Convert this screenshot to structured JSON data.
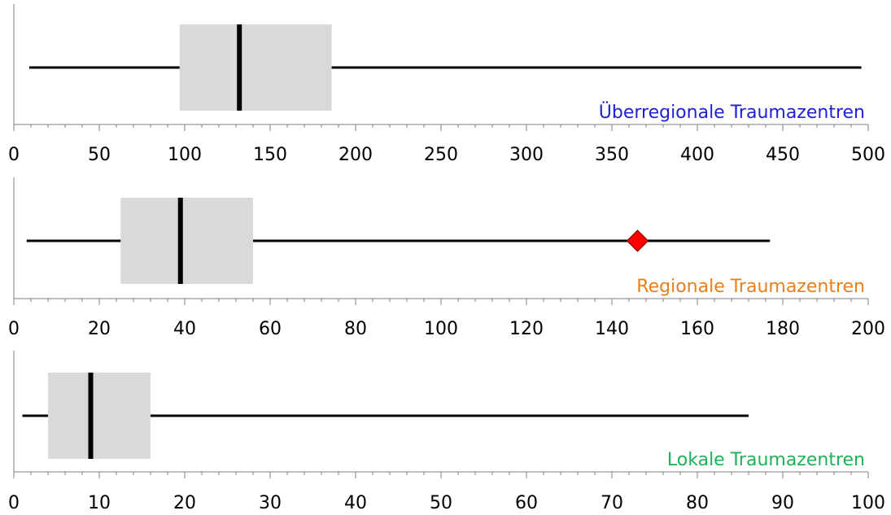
{
  "chart_data": [
    {
      "type": "boxplot",
      "series_label": "Überregionale Traumazentren",
      "label_color": "#1f1fd6",
      "xlim": [
        0,
        500
      ],
      "tick_step": 50,
      "minor_tick_step": 10,
      "tick_labels": [
        "0",
        "50",
        "100",
        "150",
        "200",
        "250",
        "300",
        "350",
        "400",
        "450",
        "500"
      ],
      "min": 9,
      "q1": 97,
      "median": 132,
      "q3": 186,
      "max": 496,
      "marker": null
    },
    {
      "type": "boxplot",
      "series_label": "Regionale Traumazentren",
      "label_color": "#e87f1c",
      "xlim": [
        0,
        200
      ],
      "tick_step": 20,
      "minor_tick_step": 4,
      "tick_labels": [
        "0",
        "20",
        "40",
        "60",
        "80",
        "100",
        "120",
        "140",
        "160",
        "180",
        "200"
      ],
      "min": 3,
      "q1": 25,
      "median": 39,
      "q3": 56,
      "max": 177,
      "marker": {
        "value": 146,
        "shape": "diamond",
        "color": "#ff0000"
      }
    },
    {
      "type": "boxplot",
      "series_label": "Lokale Traumazentren",
      "label_color": "#21b05a",
      "xlim": [
        0,
        100
      ],
      "tick_step": 10,
      "minor_tick_step": 2,
      "tick_labels": [
        "0",
        "10",
        "20",
        "30",
        "40",
        "50",
        "60",
        "70",
        "80",
        "90",
        "100"
      ],
      "min": 1,
      "q1": 4,
      "median": 9,
      "q3": 16,
      "max": 86,
      "marker": null
    }
  ],
  "colors": {
    "box_fill": "#d9d9d9",
    "line": "#000000",
    "axis": "#7f7f7f",
    "tick_label": "#000000"
  }
}
